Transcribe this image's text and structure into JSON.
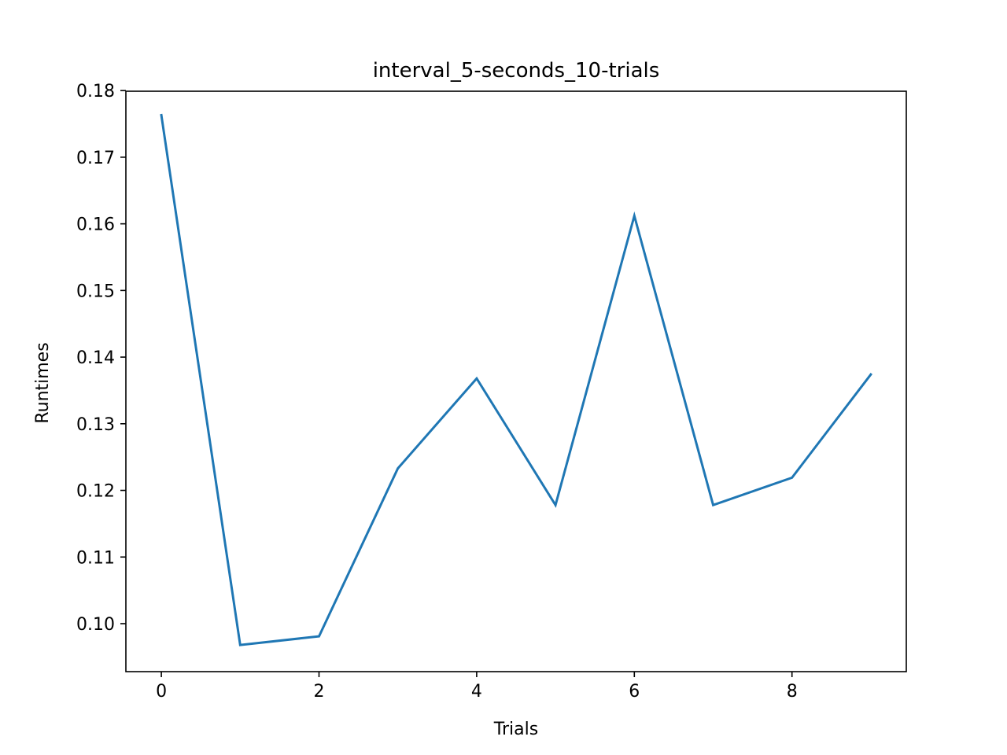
{
  "chart_data": {
    "type": "line",
    "title": "interval_5-seconds_10-trials",
    "xlabel": "Trials",
    "ylabel": "Runtimes",
    "xlim": [
      -0.45,
      9.45
    ],
    "ylim": [
      0.0928,
      0.1799
    ],
    "xticks": [
      0,
      2,
      4,
      6,
      8
    ],
    "xtick_labels": [
      "0",
      "2",
      "4",
      "6",
      "8"
    ],
    "yticks": [
      0.1,
      0.11,
      0.12,
      0.13,
      0.14,
      0.15,
      0.16,
      0.17,
      0.18
    ],
    "ytick_labels": [
      "0.10",
      "0.11",
      "0.12",
      "0.13",
      "0.14",
      "0.15",
      "0.16",
      "0.17",
      "0.18"
    ],
    "grid": false,
    "series": [
      {
        "color": "#1f77b4",
        "x": [
          0,
          1,
          2,
          3,
          4,
          5,
          6,
          7,
          8,
          9
        ],
        "values": [
          0.1763,
          0.0968,
          0.0981,
          0.1233,
          0.1368,
          0.1178,
          0.1612,
          0.1178,
          0.1219,
          0.1374
        ]
      }
    ]
  }
}
